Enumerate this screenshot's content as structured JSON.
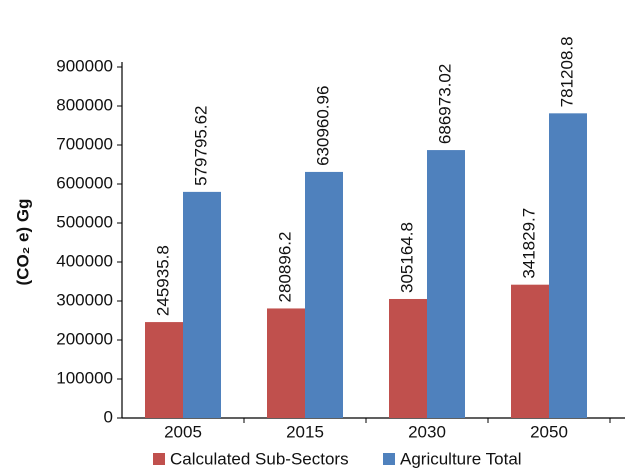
{
  "chart_data": {
    "type": "bar",
    "y_label": "(CO₂ e) Gg",
    "categories": [
      "2005",
      "2015",
      "2030",
      "2050"
    ],
    "series": [
      {
        "name": "Calculated Sub-Sectors",
        "color": "#c0504d",
        "values": [
          245935.8,
          280896.2,
          305164.8,
          341829.7
        ]
      },
      {
        "name": "Agriculture Total",
        "color": "#4f81bd",
        "values": [
          579795.62,
          630960.96,
          686973.02,
          781208.8
        ]
      }
    ],
    "ylim": [
      0,
      900000
    ],
    "yticks": [
      0,
      100000,
      200000,
      300000,
      400000,
      500000,
      600000,
      700000,
      800000,
      900000
    ],
    "grid": false,
    "legend": "bottom"
  }
}
